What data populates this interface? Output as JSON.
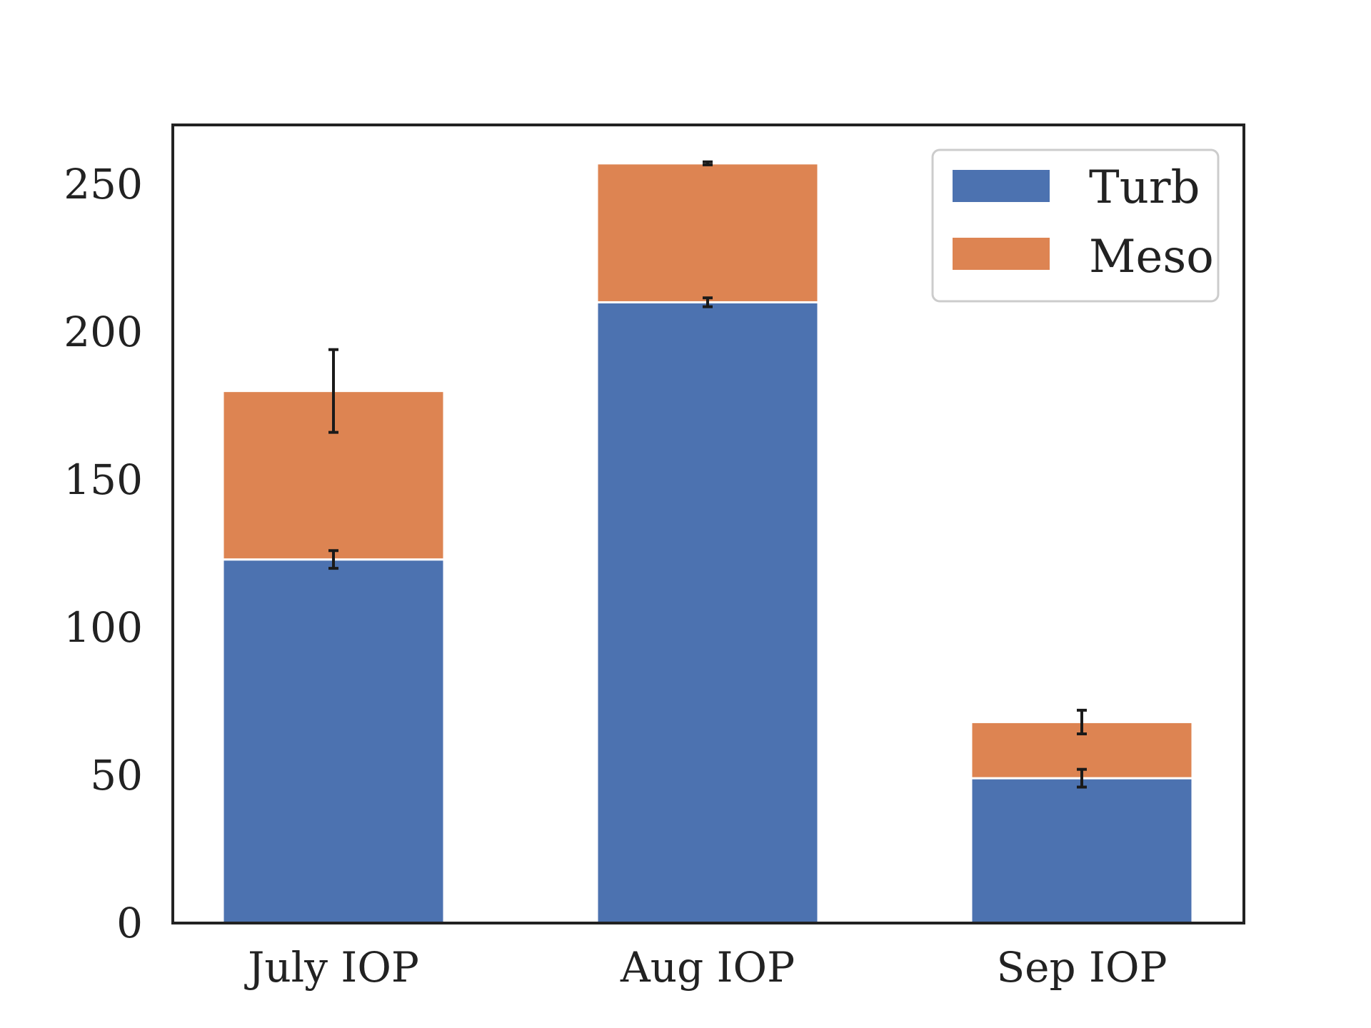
{
  "chart_data": {
    "type": "bar",
    "stacked": true,
    "title": "",
    "xlabel": "",
    "ylabel": "",
    "categories": [
      "July IOP",
      "Aug IOP",
      "Sep IOP"
    ],
    "ylim": [
      0,
      270
    ],
    "yticks": [
      0,
      50,
      100,
      150,
      200,
      250
    ],
    "series": [
      {
        "name": "Turb",
        "color": "#4c72b0",
        "values": [
          123,
          210,
          49
        ],
        "errors": [
          3,
          1.5,
          3
        ]
      },
      {
        "name": "Meso",
        "color": "#dd8452",
        "values": [
          57,
          47,
          19
        ],
        "errors": [
          14,
          0.5,
          4
        ]
      }
    ],
    "legend_position": "top-right",
    "grid": false
  }
}
